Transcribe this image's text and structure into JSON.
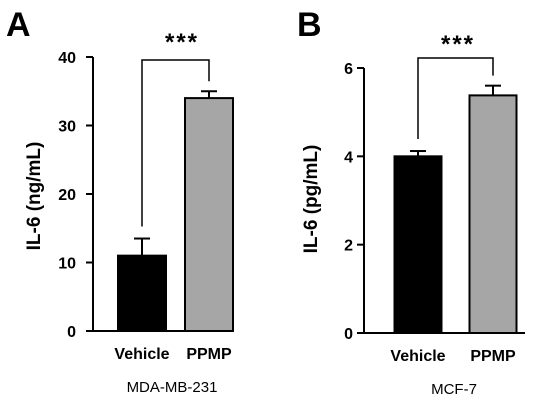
{
  "chart_data": [
    {
      "type": "bar",
      "panel": "A",
      "categories": [
        "Vehicle",
        "PPMP"
      ],
      "series": [
        {
          "values": [
            11.0,
            34.0
          ],
          "error": [
            2.5,
            1.0
          ],
          "colors": [
            "#000000",
            "#a6a6a6"
          ]
        }
      ],
      "ylabel": "IL-6 (ng/mL)",
      "xlabel": "MDA-MB-231",
      "ylim": [
        0,
        40
      ],
      "yticks": [
        0,
        10,
        20,
        30,
        40
      ],
      "significance": "***"
    },
    {
      "type": "bar",
      "panel": "B",
      "categories": [
        "Vehicle",
        "PPMP"
      ],
      "series": [
        {
          "values": [
            4.0,
            5.38
          ],
          "error": [
            0.12,
            0.22
          ],
          "colors": [
            "#000000",
            "#a6a6a6"
          ]
        }
      ],
      "ylabel": "IL-6 (pg/mL)",
      "xlabel": "MCF-7",
      "ylim": [
        0,
        6
      ],
      "yticks": [
        0,
        2,
        4,
        6
      ],
      "significance": "***"
    }
  ]
}
